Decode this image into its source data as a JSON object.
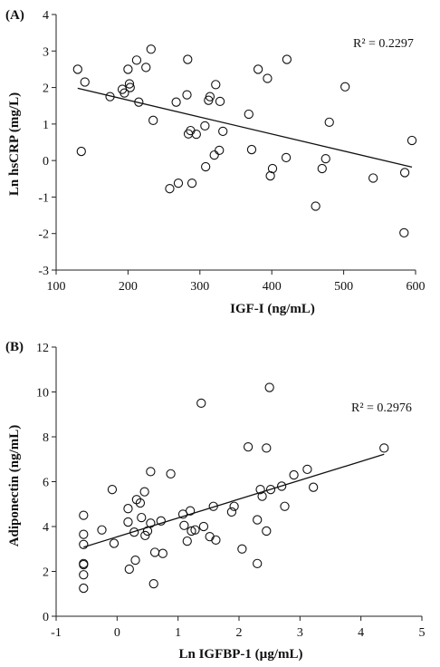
{
  "chart_data": [
    {
      "type": "scatter",
      "panel_label": "(A)",
      "xlabel": "IGF-I (ng/mL)",
      "ylabel": "Ln hsCRP (mg/L)",
      "xlim": [
        100,
        600
      ],
      "ylim": [
        -3,
        4
      ],
      "xticks": [
        100,
        200,
        300,
        400,
        500,
        600
      ],
      "yticks": [
        -3,
        -2,
        -1,
        0,
        1,
        2,
        3,
        4
      ],
      "annotation": "R² = 0.2297",
      "trendline": {
        "x": [
          130,
          595
        ],
        "y": [
          1.98,
          -0.18
        ]
      },
      "points": [
        [
          130,
          2.5
        ],
        [
          135,
          0.25
        ],
        [
          140,
          2.15
        ],
        [
          175,
          1.75
        ],
        [
          192,
          1.95
        ],
        [
          195,
          1.85
        ],
        [
          200,
          2.5
        ],
        [
          202,
          2.1
        ],
        [
          203,
          2.0
        ],
        [
          212,
          2.75
        ],
        [
          215,
          1.6
        ],
        [
          225,
          2.55
        ],
        [
          232,
          3.05
        ],
        [
          235,
          1.1
        ],
        [
          258,
          -0.77
        ],
        [
          267,
          1.6
        ],
        [
          270,
          -0.62
        ],
        [
          282,
          1.8
        ],
        [
          283,
          2.77
        ],
        [
          284,
          0.73
        ],
        [
          287,
          0.82
        ],
        [
          289,
          -0.62
        ],
        [
          295,
          0.72
        ],
        [
          307,
          0.95
        ],
        [
          308,
          -0.17
        ],
        [
          312,
          1.65
        ],
        [
          314,
          1.75
        ],
        [
          320,
          0.15
        ],
        [
          322,
          2.08
        ],
        [
          327,
          0.28
        ],
        [
          328,
          1.62
        ],
        [
          332,
          0.8
        ],
        [
          368,
          1.27
        ],
        [
          372,
          0.3
        ],
        [
          381,
          2.5
        ],
        [
          394,
          2.25
        ],
        [
          398,
          -0.42
        ],
        [
          401,
          -0.22
        ],
        [
          420,
          0.08
        ],
        [
          421,
          2.77
        ],
        [
          461,
          -1.25
        ],
        [
          470,
          -0.22
        ],
        [
          475,
          0.05
        ],
        [
          480,
          1.05
        ],
        [
          502,
          2.02
        ],
        [
          541,
          -0.48
        ],
        [
          584,
          -1.98
        ],
        [
          585,
          -0.33
        ],
        [
          595,
          0.55
        ]
      ]
    },
    {
      "type": "scatter",
      "panel_label": "(B)",
      "xlabel": "Ln IGFBP-1 (µg/mL)",
      "ylabel": "Adiponectin (ng/mL)",
      "xlim": [
        -1,
        5
      ],
      "ylim": [
        0,
        12
      ],
      "xticks": [
        -1,
        0,
        1,
        2,
        3,
        4,
        5
      ],
      "yticks": [
        0,
        2,
        4,
        6,
        8,
        10,
        12
      ],
      "annotation": "R² = 0.2976",
      "trendline": {
        "x": [
          -0.55,
          4.38
        ],
        "y": [
          3.08,
          7.22
        ]
      },
      "points": [
        [
          -0.55,
          4.5
        ],
        [
          -0.55,
          3.65
        ],
        [
          -0.55,
          3.2
        ],
        [
          -0.55,
          2.35
        ],
        [
          -0.55,
          2.3
        ],
        [
          -0.55,
          1.85
        ],
        [
          -0.55,
          1.25
        ],
        [
          -0.25,
          3.85
        ],
        [
          -0.08,
          5.65
        ],
        [
          -0.05,
          3.25
        ],
        [
          0.18,
          4.8
        ],
        [
          0.18,
          4.2
        ],
        [
          0.2,
          2.1
        ],
        [
          0.28,
          3.75
        ],
        [
          0.3,
          2.5
        ],
        [
          0.32,
          5.2
        ],
        [
          0.38,
          5.05
        ],
        [
          0.4,
          4.4
        ],
        [
          0.45,
          5.55
        ],
        [
          0.46,
          3.6
        ],
        [
          0.5,
          3.8
        ],
        [
          0.55,
          6.45
        ],
        [
          0.55,
          4.15
        ],
        [
          0.6,
          1.45
        ],
        [
          0.62,
          2.85
        ],
        [
          0.72,
          4.25
        ],
        [
          0.75,
          2.8
        ],
        [
          0.88,
          6.35
        ],
        [
          1.08,
          4.55
        ],
        [
          1.1,
          4.05
        ],
        [
          1.15,
          3.35
        ],
        [
          1.2,
          4.7
        ],
        [
          1.22,
          3.8
        ],
        [
          1.28,
          3.85
        ],
        [
          1.38,
          9.5
        ],
        [
          1.42,
          4.0
        ],
        [
          1.52,
          3.55
        ],
        [
          1.58,
          4.9
        ],
        [
          1.62,
          3.4
        ],
        [
          1.88,
          4.65
        ],
        [
          1.92,
          4.9
        ],
        [
          2.05,
          3.0
        ],
        [
          2.15,
          7.55
        ],
        [
          2.3,
          2.35
        ],
        [
          2.3,
          4.3
        ],
        [
          2.35,
          5.65
        ],
        [
          2.38,
          5.35
        ],
        [
          2.45,
          7.5
        ],
        [
          2.45,
          3.8
        ],
        [
          2.5,
          10.2
        ],
        [
          2.52,
          5.65
        ],
        [
          2.7,
          5.8
        ],
        [
          2.75,
          4.9
        ],
        [
          2.9,
          6.3
        ],
        [
          3.12,
          6.55
        ],
        [
          3.22,
          5.75
        ],
        [
          4.38,
          7.5
        ]
      ]
    }
  ]
}
